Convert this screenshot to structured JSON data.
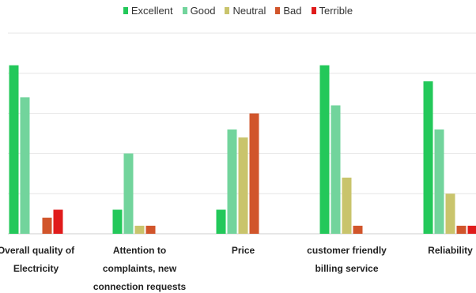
{
  "chart_data": {
    "type": "bar",
    "categories": [
      "Overall quality of Electricity",
      "Attention to complaints, new connection requests",
      "Price",
      "customer friendly billing service",
      "Reliability"
    ],
    "series": [
      {
        "name": "Excellent",
        "color": "#23c85a",
        "values": [
          4.2,
          0.6,
          0.6,
          4.2,
          3.8
        ]
      },
      {
        "name": "Good",
        "color": "#72d49c",
        "values": [
          3.4,
          2.0,
          2.6,
          3.2,
          2.6
        ]
      },
      {
        "name": "Neutral",
        "color": "#c9c46c",
        "values": [
          0,
          0.2,
          2.4,
          1.4,
          1.0
        ]
      },
      {
        "name": "Bad",
        "color": "#d1552b",
        "values": [
          0.4,
          0.2,
          3.0,
          0.2,
          0.2
        ]
      },
      {
        "name": "Terrible",
        "color": "#e01b1b",
        "values": [
          0.6,
          0,
          0,
          0,
          0.2
        ]
      }
    ],
    "ylim": [
      0,
      5
    ],
    "yticks": [
      0,
      1,
      2,
      3,
      4,
      5
    ],
    "grid": true
  }
}
